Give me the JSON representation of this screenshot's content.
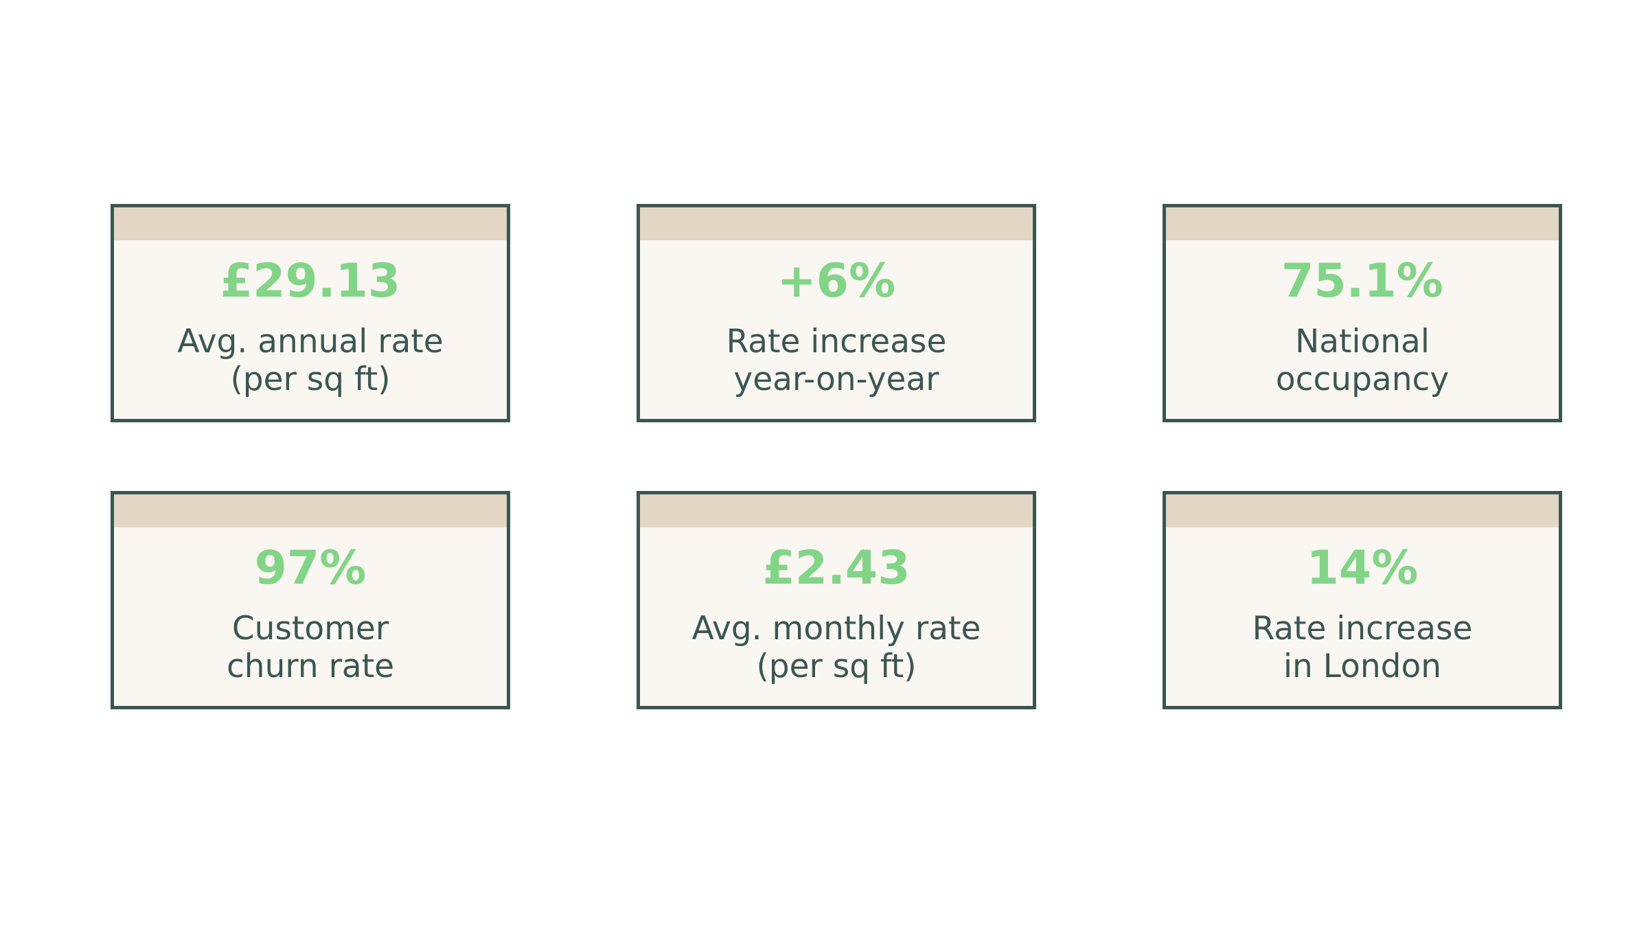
{
  "cards": [
    {
      "value": "£29.13",
      "label": [
        "Avg. annual rate",
        "(per sq ft)"
      ]
    },
    {
      "value": "+6%",
      "label": [
        "Rate increase",
        "year-on-year"
      ]
    },
    {
      "value": "75.1%",
      "label": [
        "National",
        "occupancy"
      ]
    },
    {
      "value": "97%",
      "label": [
        "Customer",
        "churn rate"
      ]
    },
    {
      "value": "£2.43",
      "label": [
        "Avg. monthly rate",
        "(per sq ft)"
      ]
    },
    {
      "value": "14%",
      "label": [
        "Rate increase",
        "in London"
      ]
    }
  ]
}
